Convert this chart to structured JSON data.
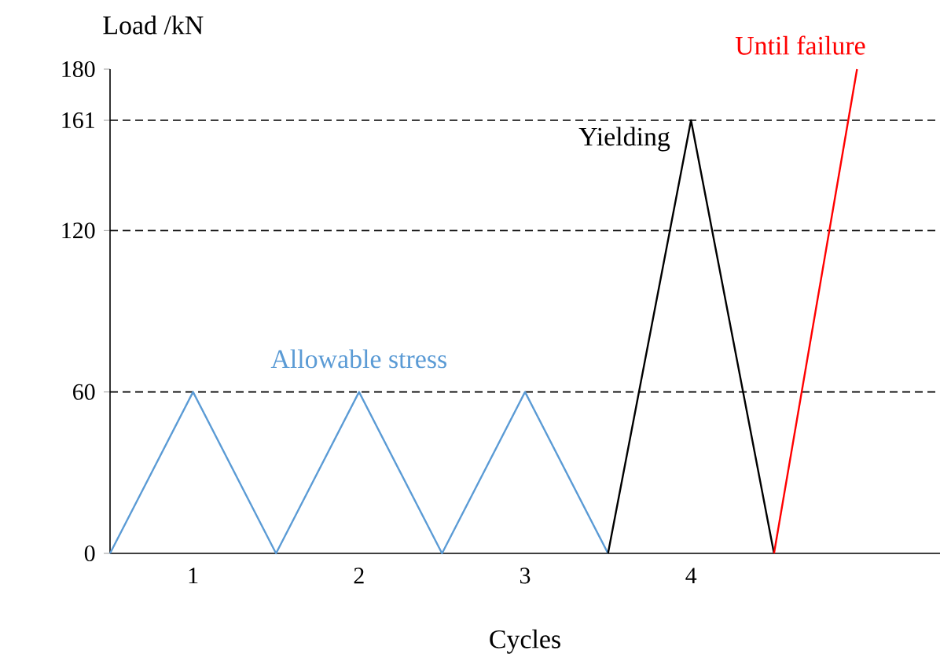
{
  "chart_data": {
    "type": "line",
    "xlabel": "Cycles",
    "ylabel": "Load /kN",
    "xlim": [
      0.5,
      5.5
    ],
    "ylim": [
      0,
      180
    ],
    "xticks": [
      1,
      2,
      3,
      4
    ],
    "yticks": [
      0,
      60,
      120,
      161,
      180
    ],
    "legend": false,
    "grid": false,
    "marker": "none",
    "line_style": "solid",
    "series": [
      {
        "name": "Allowable stress",
        "color": "#5b9bd5",
        "x": [
          0.5,
          1,
          1.5,
          2,
          2.5,
          3,
          3.5
        ],
        "values": [
          0,
          60,
          0,
          60,
          0,
          60,
          0
        ]
      },
      {
        "name": "Yielding",
        "color": "#000000",
        "x": [
          3.5,
          4,
          4.5
        ],
        "values": [
          0,
          161,
          0
        ]
      },
      {
        "name": "Until failure",
        "color": "#ff0000",
        "x": [
          4.5,
          5
        ],
        "values": [
          0,
          180
        ]
      }
    ],
    "ref_lines": [
      {
        "axis": "y",
        "value": 60,
        "color": "#000000",
        "line_style": "dashed"
      },
      {
        "axis": "y",
        "value": 120,
        "color": "#000000",
        "line_style": "dashed"
      },
      {
        "axis": "y",
        "value": 161,
        "color": "#000000",
        "line_style": "dashed"
      }
    ]
  }
}
